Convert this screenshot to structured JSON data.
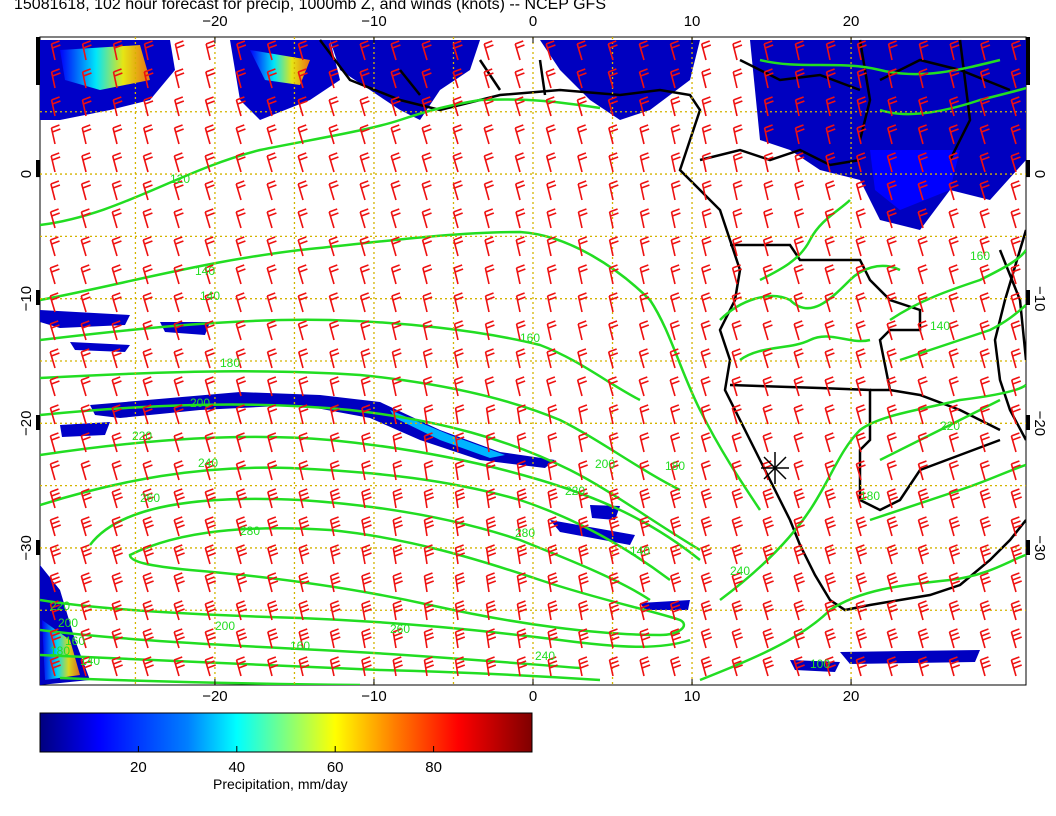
{
  "title": "15081618, 102 hour forecast for precip, 1000mb Z, and winds (knots) -- NCEP GFS",
  "map": {
    "lon_range": [
      -31,
      31
    ],
    "lat_range": [
      -41,
      11
    ],
    "lon_ticks": [
      {
        "value": -20,
        "label": "−20"
      },
      {
        "value": -10,
        "label": "−10"
      },
      {
        "value": 0,
        "label": "0"
      },
      {
        "value": 10,
        "label": "10"
      },
      {
        "value": 20,
        "label": "20"
      }
    ],
    "lat_ticks": [
      {
        "value": 0,
        "label": "0"
      },
      {
        "value": -10,
        "label": "−10"
      },
      {
        "value": -20,
        "label": "−20"
      },
      {
        "value": -30,
        "label": "−30"
      }
    ],
    "gridlines": "dotted-yellow",
    "contour_color": "#22dd22",
    "wind_barb_color": "#ee1111",
    "coastline_color": "#000000",
    "contour_labels": [
      "120",
      "140",
      "140",
      "160",
      "180",
      "200",
      "220",
      "240",
      "260",
      "280",
      "280",
      "220",
      "200",
      "180",
      "140",
      "240",
      "260",
      "240",
      "220",
      "200",
      "160",
      "140",
      "160",
      "180",
      "200",
      "220",
      "180",
      "160",
      "140",
      "100"
    ],
    "marker": "asterisk"
  },
  "colorbar": {
    "label": "Precipitation, mm/day",
    "ticks": [
      {
        "value": 20,
        "label": "20"
      },
      {
        "value": 40,
        "label": "40"
      },
      {
        "value": 60,
        "label": "60"
      },
      {
        "value": 80,
        "label": "80"
      }
    ],
    "range": [
      0,
      100
    ],
    "colors": [
      "#00007f",
      "#0000ff",
      "#007fff",
      "#00ffff",
      "#7fff7f",
      "#ffff00",
      "#ff7f00",
      "#ff0000",
      "#7f0000"
    ]
  }
}
